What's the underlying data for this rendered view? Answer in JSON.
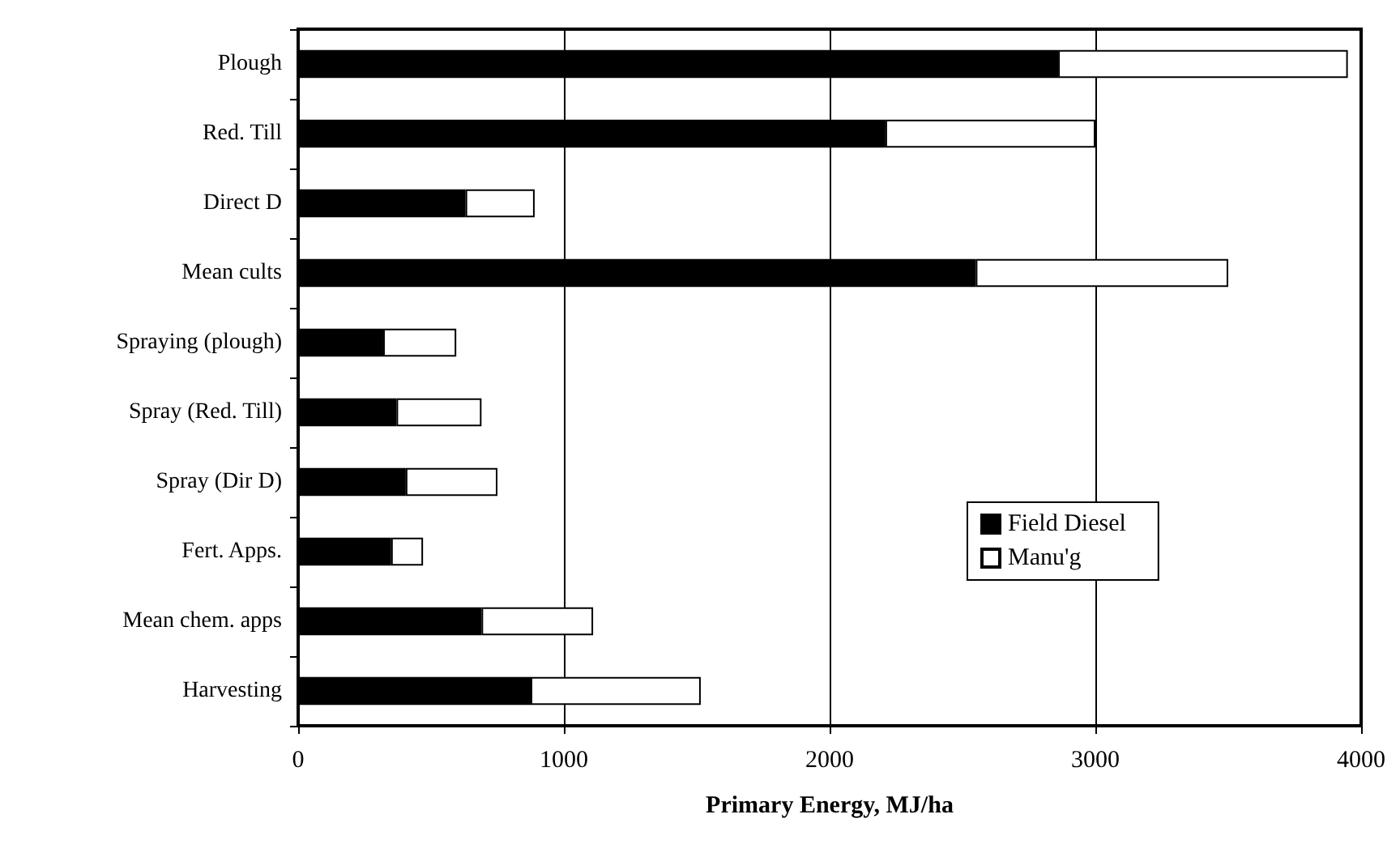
{
  "chart_data": {
    "type": "bar",
    "orientation": "horizontal",
    "stacked": true,
    "categories": [
      "Plough",
      "Red. Till",
      "Direct D",
      "Mean cults",
      "Spraying (plough)",
      "Spray (Red. Till)",
      "Spray (Dir D)",
      "Fert. Apps.",
      "Mean chem. apps",
      "Harvesting"
    ],
    "series": [
      {
        "name": "Field Diesel",
        "color": "#000000",
        "values": [
          2860,
          2210,
          630,
          2550,
          320,
          370,
          405,
          350,
          690,
          875
        ]
      },
      {
        "name": "Manu'g",
        "color": "#ffffff",
        "values": [
          1090,
          790,
          260,
          950,
          275,
          320,
          345,
          120,
          420,
          640
        ]
      }
    ],
    "xlabel": "Primary Energy, MJ/ha",
    "xlim": [
      0,
      4000
    ],
    "xticks": [
      0,
      1000,
      2000,
      3000,
      4000
    ],
    "grid": "x",
    "legend": "right"
  }
}
